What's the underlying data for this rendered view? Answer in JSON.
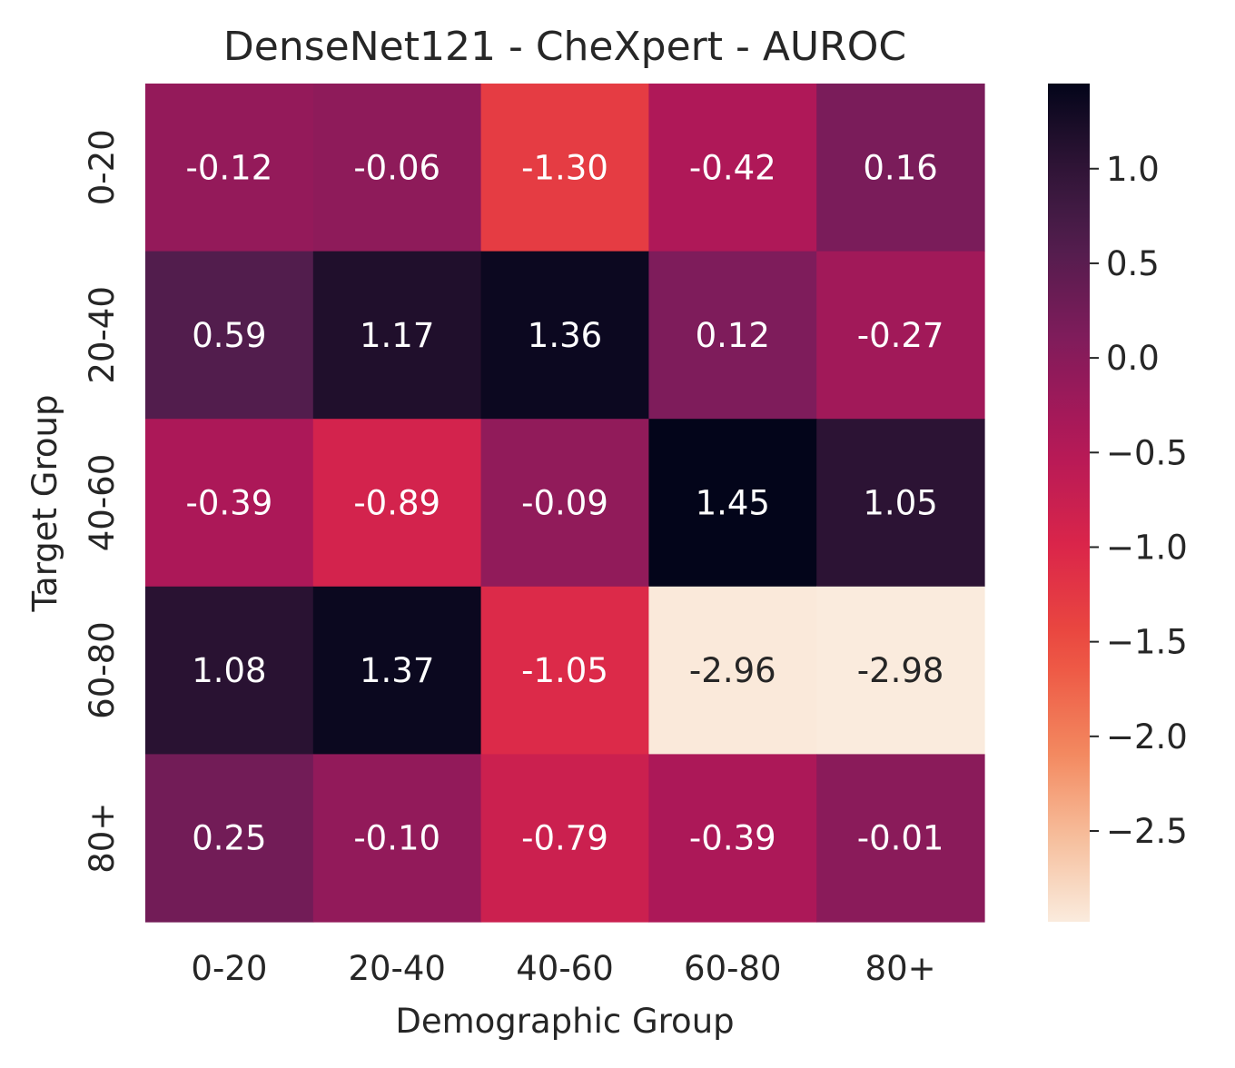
{
  "chart_data": {
    "type": "heatmap",
    "title": "DenseNet121 - CheXpert - AUROC",
    "xlabel": "Demographic Group",
    "ylabel": "Target Group",
    "x_categories": [
      "0-20",
      "20-40",
      "40-60",
      "60-80",
      "80+"
    ],
    "y_categories": [
      "0-20",
      "20-40",
      "40-60",
      "60-80",
      "80+"
    ],
    "values": [
      [
        -0.12,
        -0.06,
        -1.3,
        -0.42,
        0.16
      ],
      [
        0.59,
        1.17,
        1.36,
        0.12,
        -0.27
      ],
      [
        -0.39,
        -0.89,
        -0.09,
        1.45,
        1.05
      ],
      [
        1.08,
        1.37,
        -1.05,
        -2.96,
        -2.98
      ],
      [
        0.25,
        -0.1,
        -0.79,
        -0.39,
        -0.01
      ]
    ],
    "cell_labels": [
      [
        "-0.12",
        "-0.06",
        "-1.30",
        "-0.42",
        "0.16"
      ],
      [
        "0.59",
        "1.17",
        "1.36",
        "0.12",
        "-0.27"
      ],
      [
        "-0.39",
        "-0.89",
        "-0.09",
        "1.45",
        "1.05"
      ],
      [
        "1.08",
        "1.37",
        "-1.05",
        "-2.96",
        "-2.98"
      ],
      [
        "0.25",
        "-0.10",
        "-0.79",
        "-0.39",
        "-0.01"
      ]
    ],
    "colorbar": {
      "vmin": -2.98,
      "vmax": 1.45,
      "ticks": [
        1.0,
        0.5,
        0.0,
        -0.5,
        -1.0,
        -1.5,
        -2.0,
        -2.5
      ],
      "tick_labels": [
        "1.0",
        "0.5",
        "0.0",
        "−0.5",
        "−1.0",
        "−1.5",
        "−2.0",
        "−2.5"
      ],
      "colormap": "rocket_r"
    },
    "annotation_colors": {
      "dark_cell_text": "#ffffff",
      "light_cell_text": "#262626"
    },
    "grid": false
  }
}
